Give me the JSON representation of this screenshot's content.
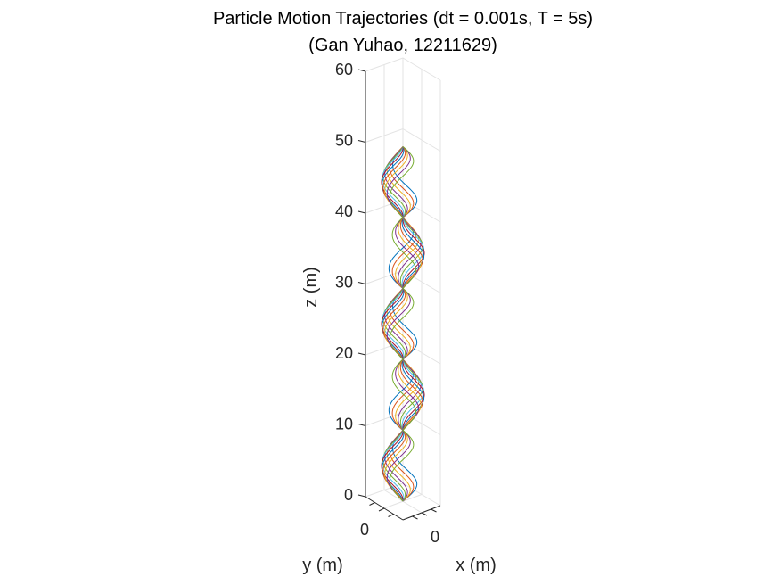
{
  "chart_data": {
    "type": "line",
    "projection": "3d",
    "title": "Particle Motion Trajectories (dt = 0.001s, T = 5s)",
    "subtitle": "(Gan Yuhao, 12211629)",
    "xlabel": "x (m)",
    "ylabel": "y (m)",
    "zlabel": "z (m)",
    "z_ticks": [
      "0",
      "10",
      "20",
      "30",
      "40",
      "50",
      "60"
    ],
    "x_ticks": [
      "0"
    ],
    "y_ticks": [
      "0"
    ],
    "zlim": [
      0,
      60
    ],
    "grid": true,
    "legend": "none",
    "trajectories": {
      "count": 12,
      "z_range": [
        0,
        50
      ],
      "twists": 5,
      "colors": [
        "#0072BD",
        "#D95319",
        "#EDB120",
        "#7E2F8E",
        "#77AC30",
        "#4DBEEE",
        "#A2142F"
      ]
    }
  }
}
